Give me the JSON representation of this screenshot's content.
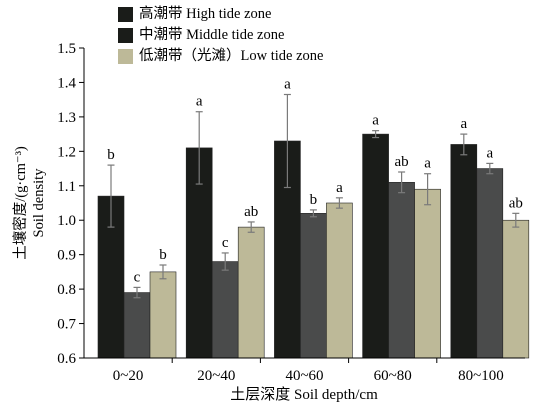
{
  "chart_data": {
    "type": "bar",
    "categories": [
      "0~20",
      "20~40",
      "40~60",
      "60~80",
      "80~100"
    ],
    "series": [
      {
        "name": "高潮带 High tide zone",
        "color": "#1a1c19",
        "values": [
          1.07,
          1.21,
          1.23,
          1.25,
          1.22
        ],
        "errors": [
          0.09,
          0.105,
          0.135,
          0.01,
          0.03
        ],
        "labels": [
          "b",
          "a",
          "a",
          "a",
          "a"
        ]
      },
      {
        "name": "中潮带 Middle tide zone",
        "color": "#4a4b4b",
        "values": [
          0.79,
          0.88,
          1.02,
          1.11,
          1.15
        ],
        "errors": [
          0.015,
          0.025,
          0.01,
          0.03,
          0.015
        ],
        "labels": [
          "c",
          "c",
          "b",
          "ab",
          "a"
        ]
      },
      {
        "name": "低潮带（光滩）Low tide zone",
        "color": "#bdb998",
        "values": [
          0.85,
          0.98,
          1.05,
          1.09,
          1.0
        ],
        "errors": [
          0.02,
          0.015,
          0.015,
          0.045,
          0.02
        ],
        "labels": [
          "b",
          "ab",
          "a",
          "a",
          "ab"
        ]
      }
    ],
    "ylim": [
      0.6,
      1.5
    ],
    "yticks": [
      "0.6",
      "0.7",
      "0.8",
      "0.9",
      "1.0",
      "1.1",
      "1.2",
      "1.3",
      "1.4",
      "1.5"
    ],
    "xlabel": "土层深度 Soil depth/cm",
    "ylabel_cn": "土壤密度/(g·cm⁻³)",
    "ylabel_en": "Soil density",
    "legend_position": "top-left",
    "grid": false
  }
}
